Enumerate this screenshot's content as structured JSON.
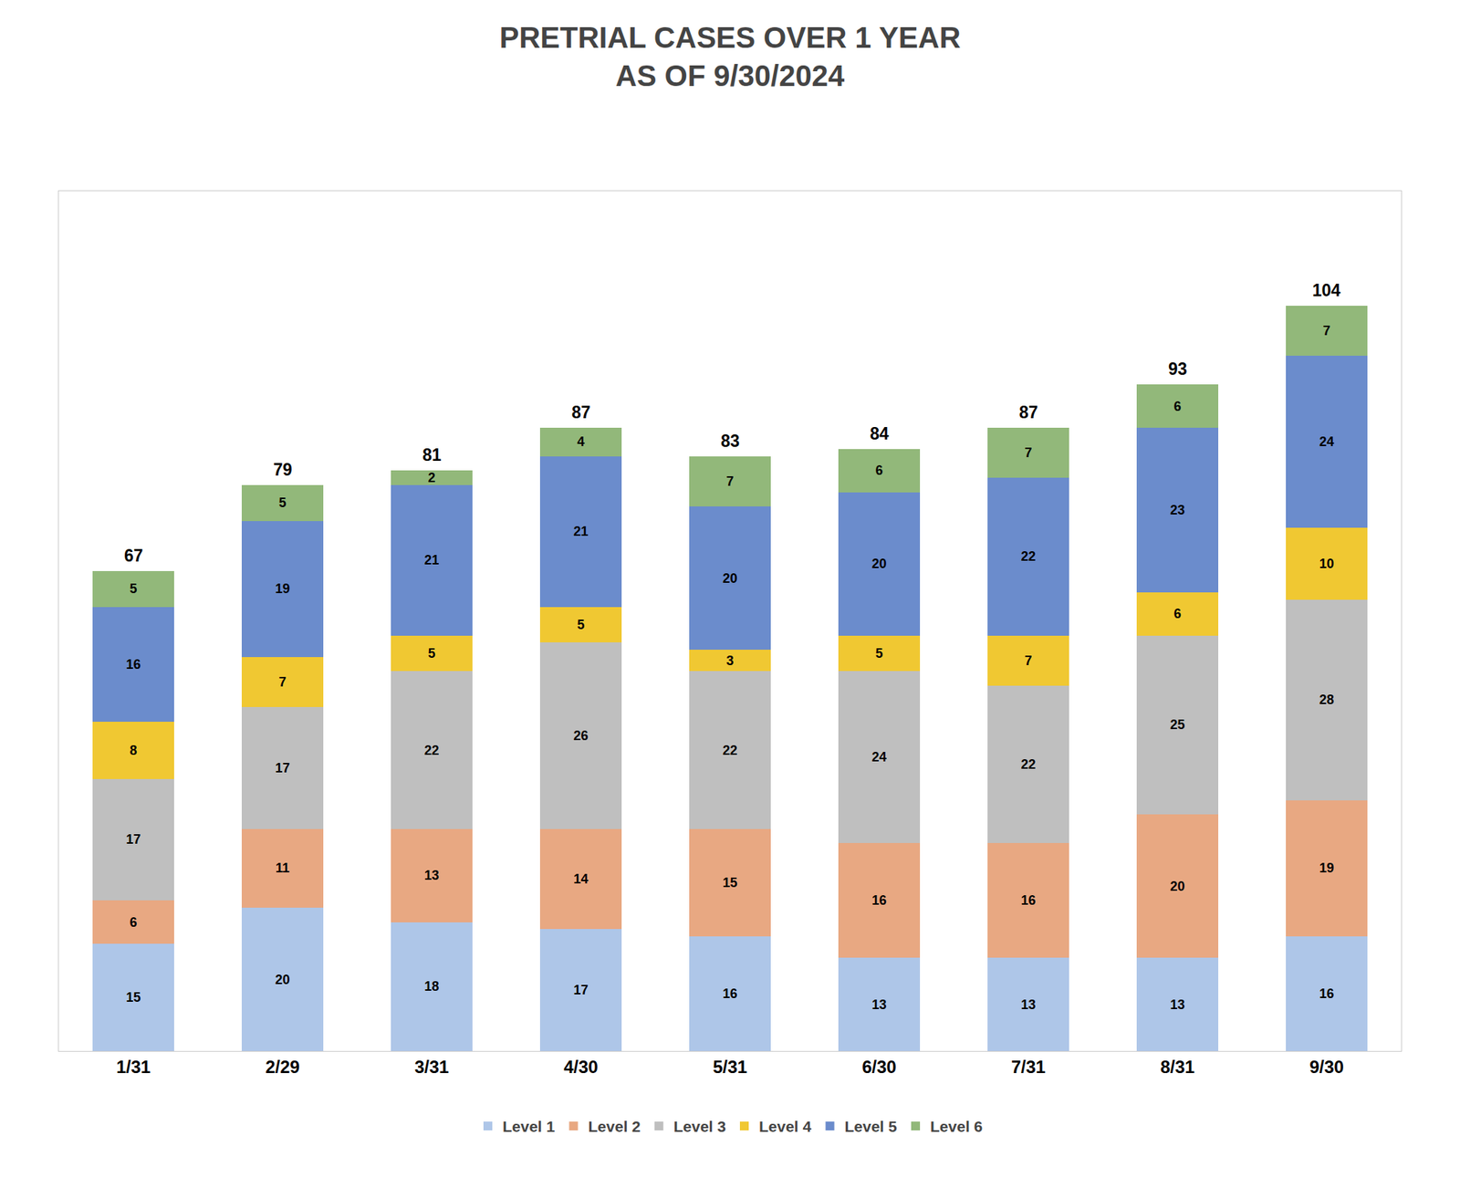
{
  "chart_data": {
    "type": "bar",
    "stacked": true,
    "title": "PRETRIAL CASES OVER 1 YEAR",
    "subtitle": "AS OF 9/30/2024",
    "categories": [
      "1/31",
      "2/29",
      "3/31",
      "4/30",
      "5/31",
      "6/30",
      "7/31",
      "8/31",
      "9/30"
    ],
    "series": [
      {
        "name": "Level 1",
        "color": "#aec6e8",
        "values": [
          15,
          20,
          18,
          17,
          16,
          13,
          13,
          13,
          16
        ]
      },
      {
        "name": "Level 2",
        "color": "#e8a882",
        "values": [
          6,
          11,
          13,
          14,
          15,
          16,
          16,
          20,
          19
        ]
      },
      {
        "name": "Level 3",
        "color": "#bfbfbf",
        "values": [
          17,
          17,
          22,
          26,
          22,
          24,
          22,
          25,
          28
        ]
      },
      {
        "name": "Level 4",
        "color": "#f0c832",
        "values": [
          8,
          7,
          5,
          5,
          3,
          5,
          7,
          6,
          10
        ]
      },
      {
        "name": "Level 5",
        "color": "#6b8ccc",
        "values": [
          16,
          19,
          21,
          21,
          20,
          20,
          22,
          23,
          24
        ]
      },
      {
        "name": "Level 6",
        "color": "#92b87a",
        "values": [
          5,
          5,
          2,
          4,
          7,
          6,
          7,
          6,
          7
        ]
      }
    ],
    "totals": [
      67,
      79,
      81,
      87,
      83,
      84,
      87,
      93,
      104
    ],
    "ylim": [
      0,
      120
    ],
    "grid": false,
    "tick_labels": "x",
    "data_labels": true,
    "legend": "bottom"
  }
}
